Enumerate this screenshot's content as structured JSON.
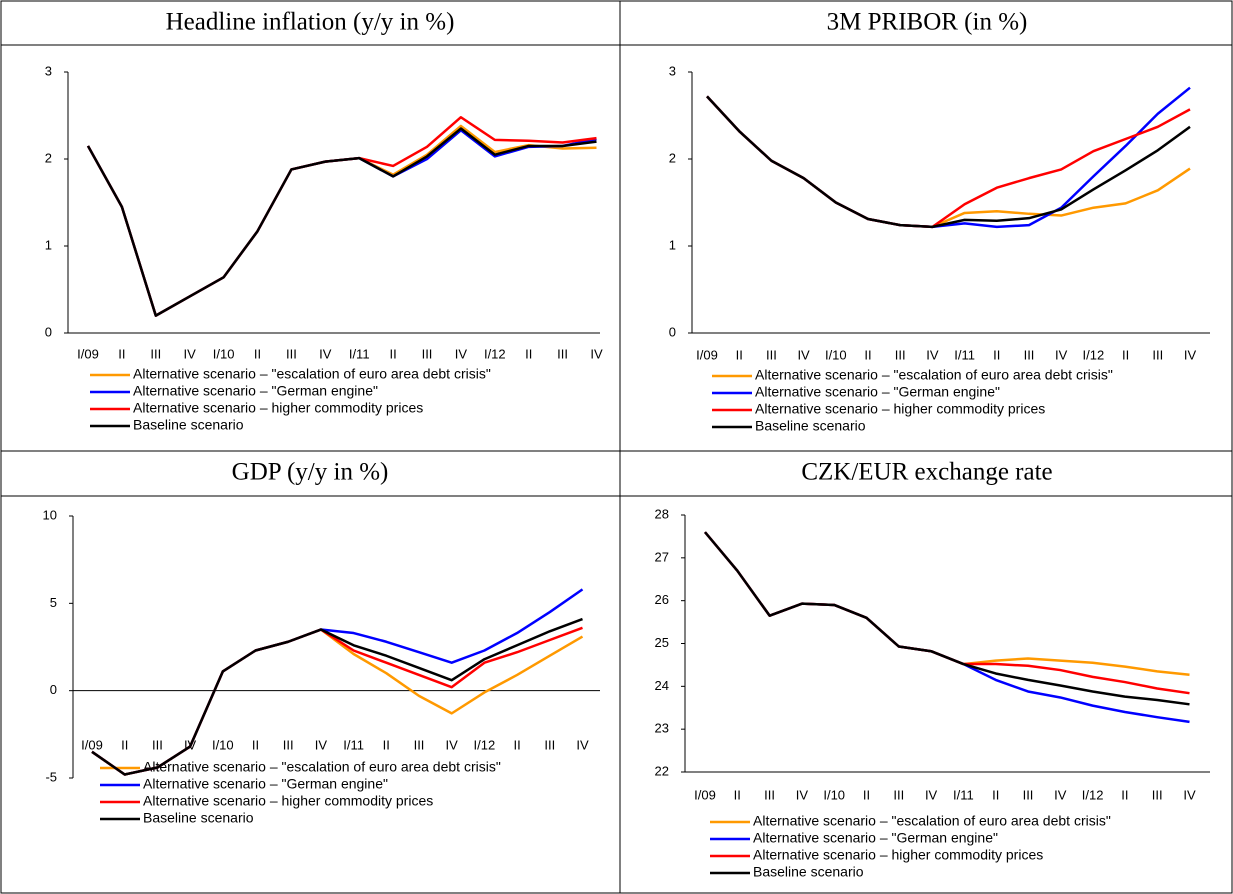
{
  "chart_data": [
    {
      "type": "line",
      "title": "Headline inflation (y/y in %)",
      "categories": [
        "I/09",
        "II",
        "III",
        "IV",
        "I/10",
        "II",
        "III",
        "IV",
        "I/11",
        "II",
        "III",
        "IV",
        "I/12",
        "II",
        "III",
        "IV"
      ],
      "ylim": [
        0,
        3
      ],
      "yticks": [
        0,
        1,
        2,
        3
      ],
      "series": [
        {
          "name": "Alternative scenario – \"escalation of euro area debt crisis\"",
          "color": "#ff9900",
          "values": [
            2.15,
            1.45,
            0.2,
            0.42,
            0.64,
            1.17,
            1.88,
            1.97,
            2.01,
            1.82,
            2.05,
            2.38,
            2.08,
            2.16,
            2.12,
            2.13
          ]
        },
        {
          "name": "Alternative scenario – \"German engine\"",
          "color": "#0000ff",
          "values": [
            2.15,
            1.45,
            0.2,
            0.42,
            0.64,
            1.17,
            1.88,
            1.97,
            2.01,
            1.8,
            2.0,
            2.33,
            2.03,
            2.14,
            2.15,
            2.23
          ]
        },
        {
          "name": "Alternative scenario – higher commodity prices",
          "color": "#ff0000",
          "values": [
            2.15,
            1.45,
            0.2,
            0.42,
            0.64,
            1.17,
            1.88,
            1.97,
            2.01,
            1.92,
            2.14,
            2.48,
            2.22,
            2.21,
            2.19,
            2.24
          ]
        },
        {
          "name": "Baseline scenario",
          "color": "#000000",
          "values": [
            2.15,
            1.45,
            0.2,
            0.42,
            0.64,
            1.17,
            1.88,
            1.97,
            2.01,
            1.8,
            2.03,
            2.35,
            2.05,
            2.15,
            2.15,
            2.2
          ]
        }
      ]
    },
    {
      "type": "line",
      "title": "3M PRIBOR (in %)",
      "categories": [
        "I/09",
        "II",
        "III",
        "IV",
        "I/10",
        "II",
        "III",
        "IV",
        "I/11",
        "II",
        "III",
        "IV",
        "I/12",
        "II",
        "III",
        "IV"
      ],
      "ylim": [
        0,
        3
      ],
      "yticks": [
        0,
        1,
        2,
        3
      ],
      "series": [
        {
          "name": "Alternative scenario – \"escalation of euro area debt crisis\"",
          "color": "#ff9900",
          "values": [
            2.72,
            2.32,
            1.98,
            1.78,
            1.5,
            1.31,
            1.24,
            1.22,
            1.38,
            1.4,
            1.37,
            1.35,
            1.44,
            1.49,
            1.64,
            1.89
          ]
        },
        {
          "name": "Alternative scenario – \"German engine\"",
          "color": "#0000ff",
          "values": [
            2.72,
            2.32,
            1.98,
            1.78,
            1.5,
            1.31,
            1.24,
            1.22,
            1.26,
            1.22,
            1.24,
            1.44,
            1.8,
            2.15,
            2.52,
            2.82
          ]
        },
        {
          "name": "Alternative scenario – higher commodity prices",
          "color": "#ff0000",
          "values": [
            2.72,
            2.32,
            1.98,
            1.78,
            1.5,
            1.31,
            1.24,
            1.22,
            1.48,
            1.67,
            1.78,
            1.88,
            2.09,
            2.23,
            2.37,
            2.57
          ]
        },
        {
          "name": "Baseline scenario",
          "color": "#000000",
          "values": [
            2.72,
            2.32,
            1.98,
            1.78,
            1.5,
            1.31,
            1.24,
            1.22,
            1.3,
            1.29,
            1.32,
            1.42,
            1.65,
            1.87,
            2.1,
            2.37
          ]
        }
      ]
    },
    {
      "type": "line",
      "title": "GDP (y/y in %)",
      "categories": [
        "I/09",
        "II",
        "III",
        "IV",
        "I/10",
        "II",
        "III",
        "IV",
        "I/11",
        "II",
        "III",
        "IV",
        "I/12",
        "II",
        "III",
        "IV"
      ],
      "ylim": [
        -5,
        10
      ],
      "yticks": [
        -5,
        0,
        5,
        10
      ],
      "series": [
        {
          "name": "Alternative scenario – \"escalation of euro area debt crisis\"",
          "color": "#ff9900",
          "values": [
            -3.5,
            -4.8,
            -4.4,
            -3.2,
            1.1,
            2.3,
            2.8,
            3.5,
            2.1,
            1.0,
            -0.3,
            -1.3,
            -0.1,
            0.9,
            2.0,
            3.1
          ]
        },
        {
          "name": "Alternative scenario – \"German engine\"",
          "color": "#0000ff",
          "values": [
            -3.5,
            -4.8,
            -4.4,
            -3.2,
            1.1,
            2.3,
            2.8,
            3.5,
            3.3,
            2.8,
            2.2,
            1.6,
            2.3,
            3.3,
            4.5,
            5.8
          ]
        },
        {
          "name": "Alternative scenario – higher commodity prices",
          "color": "#ff0000",
          "values": [
            -3.5,
            -4.8,
            -4.4,
            -3.2,
            1.1,
            2.3,
            2.8,
            3.5,
            2.3,
            1.6,
            0.9,
            0.2,
            1.6,
            2.2,
            2.9,
            3.6
          ]
        },
        {
          "name": "Baseline scenario",
          "color": "#000000",
          "values": [
            -3.5,
            -4.8,
            -4.4,
            -3.2,
            1.1,
            2.3,
            2.8,
            3.5,
            2.6,
            2.0,
            1.3,
            0.6,
            1.8,
            2.6,
            3.4,
            4.1
          ]
        }
      ]
    },
    {
      "type": "line",
      "title": "CZK/EUR exchange rate",
      "categories": [
        "I/09",
        "II",
        "III",
        "IV",
        "I/10",
        "II",
        "III",
        "IV",
        "I/11",
        "II",
        "III",
        "IV",
        "I/12",
        "II",
        "III",
        "IV"
      ],
      "ylim": [
        22,
        28
      ],
      "yticks": [
        22,
        23,
        24,
        25,
        26,
        27,
        28
      ],
      "series": [
        {
          "name": "Alternative scenario – \"escalation of euro area debt crisis\"",
          "color": "#ff9900",
          "values": [
            27.6,
            26.7,
            25.65,
            25.93,
            25.9,
            25.6,
            24.93,
            24.82,
            24.52,
            24.6,
            24.65,
            24.6,
            24.55,
            24.46,
            24.35,
            24.27
          ]
        },
        {
          "name": "Alternative scenario – \"German engine\"",
          "color": "#0000ff",
          "values": [
            27.6,
            26.7,
            25.65,
            25.93,
            25.9,
            25.6,
            24.93,
            24.82,
            24.52,
            24.15,
            23.88,
            23.74,
            23.55,
            23.4,
            23.28,
            23.17
          ]
        },
        {
          "name": "Alternative scenario – higher commodity prices",
          "color": "#ff0000",
          "values": [
            27.6,
            26.7,
            25.65,
            25.93,
            25.9,
            25.6,
            24.93,
            24.82,
            24.52,
            24.52,
            24.48,
            24.38,
            24.22,
            24.1,
            23.95,
            23.84
          ]
        },
        {
          "name": "Baseline scenario",
          "color": "#000000",
          "values": [
            27.6,
            26.7,
            25.65,
            25.93,
            25.9,
            25.6,
            24.93,
            24.82,
            24.52,
            24.3,
            24.15,
            24.02,
            23.88,
            23.76,
            23.68,
            23.58
          ]
        }
      ]
    }
  ]
}
